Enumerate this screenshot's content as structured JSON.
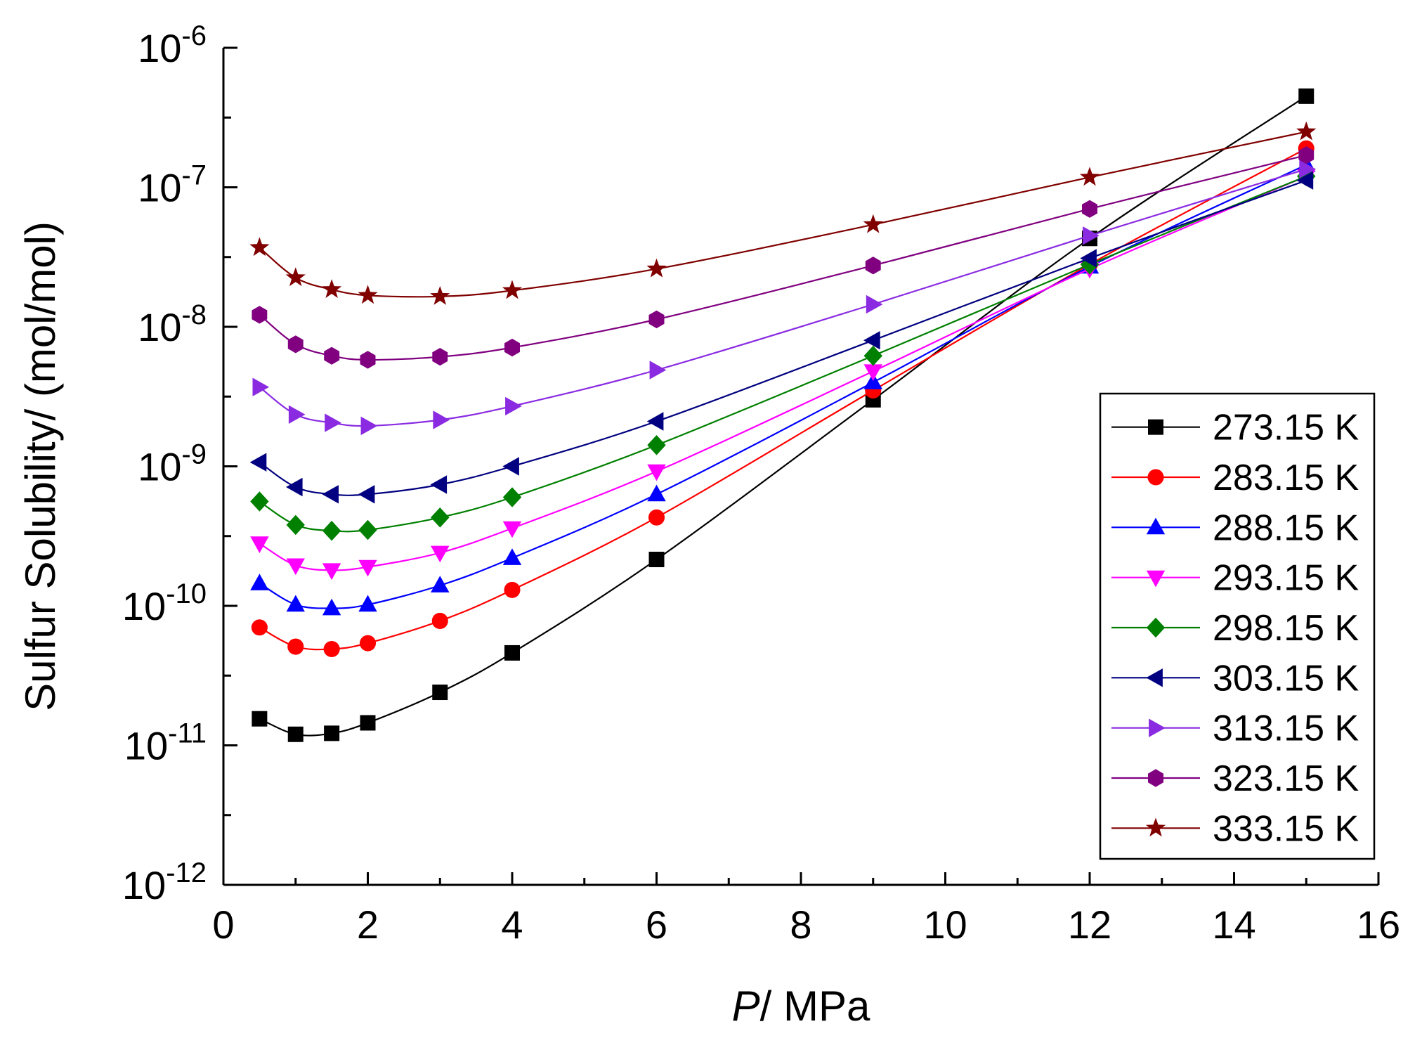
{
  "chart_data": {
    "type": "line",
    "xlabel": {
      "italic": "P",
      "rest": "/ MPa"
    },
    "ylabel": "Sulfur Solubility/ (mol/mol)",
    "xlim": [
      0,
      16
    ],
    "ylim": [
      1e-12,
      1e-06
    ],
    "yscale": "log",
    "grid": false,
    "legend_position": "right",
    "x_ticks": [
      "0",
      "2",
      "4",
      "6",
      "8",
      "10",
      "12",
      "14",
      "16"
    ],
    "y_ticks": [
      {
        "base": "10",
        "exp": "-12"
      },
      {
        "base": "10",
        "exp": "-11"
      },
      {
        "base": "10",
        "exp": "-10"
      },
      {
        "base": "10",
        "exp": "-9"
      },
      {
        "base": "10",
        "exp": "-8"
      },
      {
        "base": "10",
        "exp": "-7"
      },
      {
        "base": "10",
        "exp": "-6"
      }
    ],
    "x": [
      0.5,
      1,
      1.5,
      2,
      3,
      4,
      6,
      9,
      12,
      15
    ],
    "series": [
      {
        "name": "273.15 K",
        "color": "#000000",
        "marker": "square",
        "values": [
          1.55e-11,
          1.2e-11,
          1.22e-11,
          1.45e-11,
          2.4e-11,
          4.6e-11,
          2.15e-10,
          3e-09,
          4.3e-08,
          4.5e-07
        ]
      },
      {
        "name": "283.15 K",
        "color": "#ff0000",
        "marker": "circle",
        "values": [
          7e-11,
          5.1e-11,
          4.9e-11,
          5.4e-11,
          7.8e-11,
          1.3e-10,
          4.3e-10,
          3.5e-09,
          2.8e-08,
          1.9e-07
        ]
      },
      {
        "name": "288.15 K",
        "color": "#0000ff",
        "marker": "triangle-up",
        "values": [
          1.45e-10,
          1.02e-10,
          9.6e-11,
          1.02e-10,
          1.4e-10,
          2.2e-10,
          6.3e-10,
          4e-09,
          2.7e-08,
          1.45e-07
        ]
      },
      {
        "name": "293.15 K",
        "color": "#ff00ff",
        "marker": "triangle-down",
        "values": [
          2.8e-10,
          1.95e-10,
          1.8e-10,
          1.9e-10,
          2.4e-10,
          3.6e-10,
          9.2e-10,
          4.8e-09,
          2.6e-08,
          1.2e-07
        ]
      },
      {
        "name": "298.15 K",
        "color": "#008000",
        "marker": "diamond",
        "values": [
          5.6e-10,
          3.8e-10,
          3.45e-10,
          3.5e-10,
          4.3e-10,
          6e-10,
          1.42e-09,
          6.2e-09,
          2.8e-08,
          1.2e-07
        ]
      },
      {
        "name": "303.15 K",
        "color": "#000080",
        "marker": "triangle-left",
        "values": [
          1.07e-09,
          7.1e-10,
          6.3e-10,
          6.3e-10,
          7.4e-10,
          1e-09,
          2.1e-09,
          8e-09,
          3.1e-08,
          1.12e-07
        ]
      },
      {
        "name": "313.15 K",
        "color": "#8a2be2",
        "marker": "triangle-right",
        "values": [
          3.7e-09,
          2.35e-09,
          2.05e-09,
          1.95e-09,
          2.15e-09,
          2.7e-09,
          4.9e-09,
          1.45e-08,
          4.5e-08,
          1.35e-07
        ]
      },
      {
        "name": "323.15 K",
        "color": "#800080",
        "marker": "hexagon",
        "values": [
          1.22e-08,
          7.5e-09,
          6.2e-09,
          5.8e-09,
          6.1e-09,
          7.1e-09,
          1.13e-08,
          2.75e-08,
          7e-08,
          1.7e-07
        ]
      },
      {
        "name": "333.15 K",
        "color": "#800000",
        "marker": "star",
        "values": [
          3.7e-08,
          2.25e-08,
          1.85e-08,
          1.68e-08,
          1.65e-08,
          1.82e-08,
          2.6e-08,
          5.4e-08,
          1.18e-07,
          2.5e-07
        ]
      }
    ]
  }
}
